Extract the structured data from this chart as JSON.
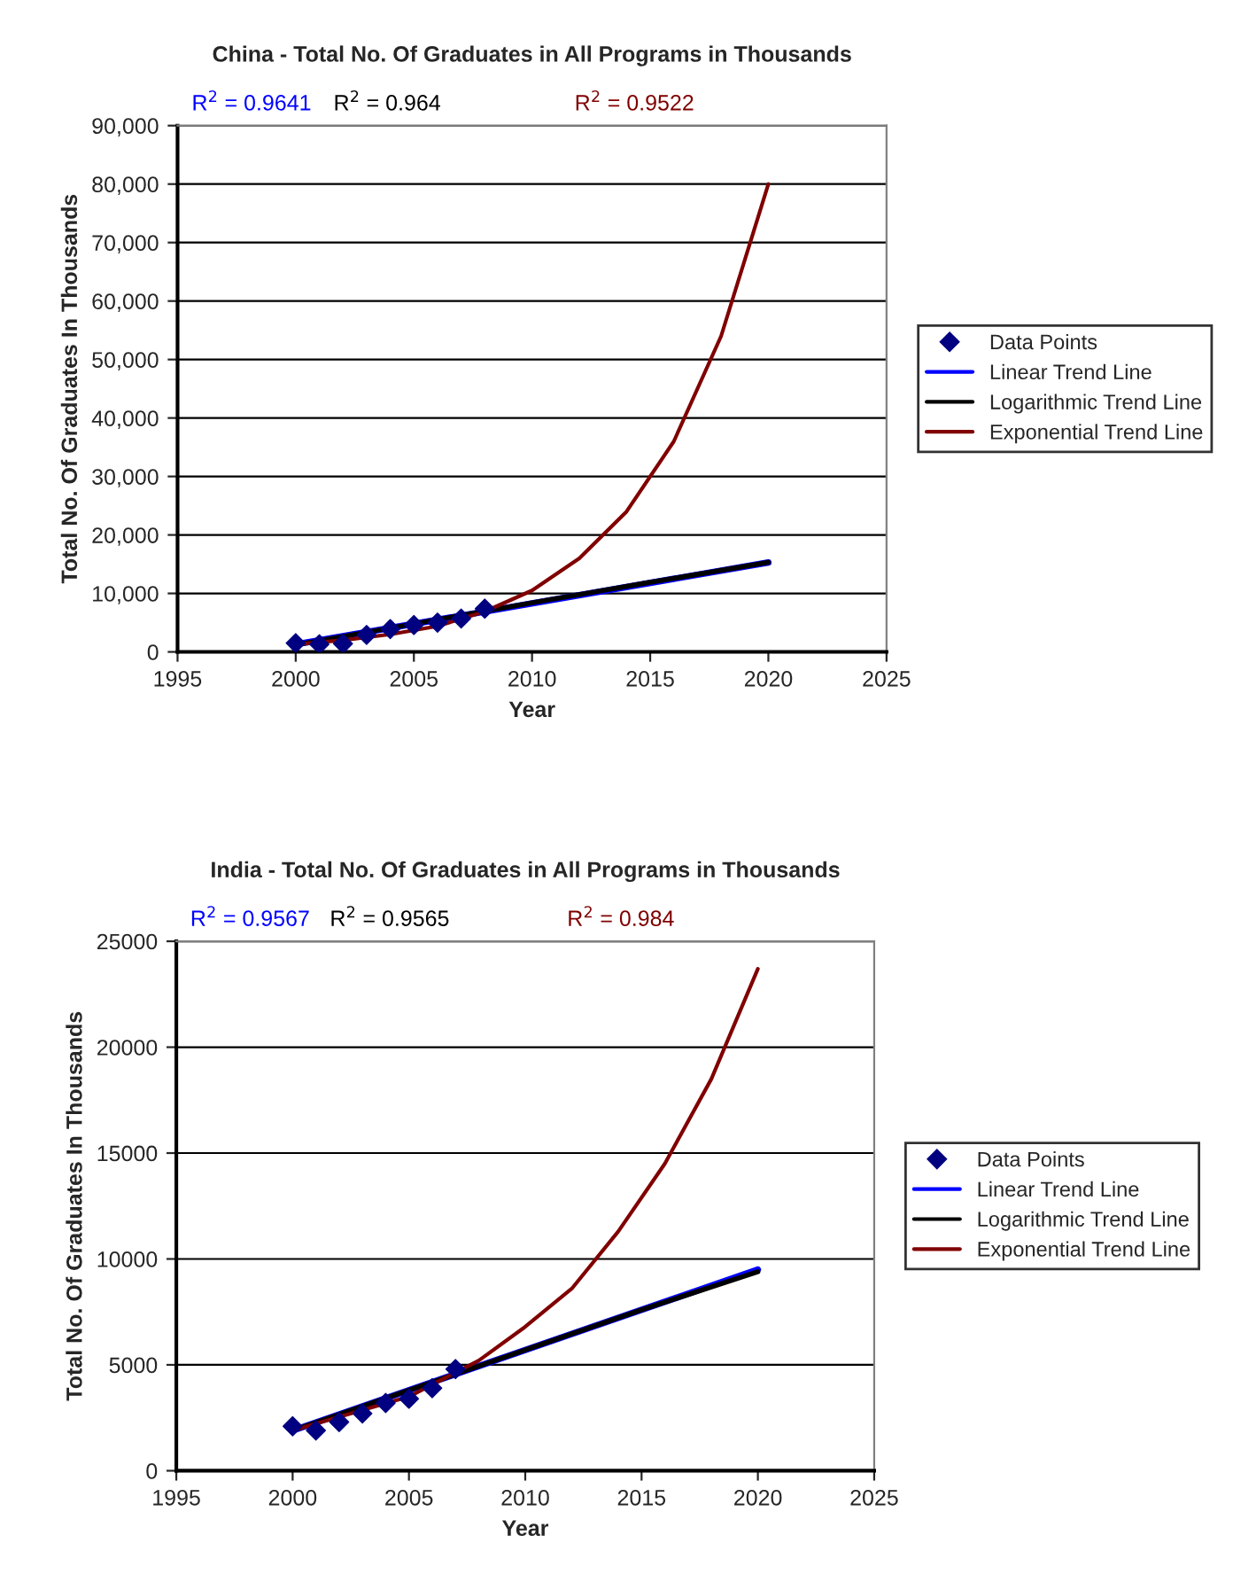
{
  "chart_data": [
    {
      "type": "scatter",
      "title": "China - Total No. Of Graduates in All Programs in Thousands",
      "xlabel": "Year",
      "ylabel": "Total No. Of Graduates In Thousands",
      "annotations": [
        "R$^{2}$ = 0.9641",
        "R$^{2}$ = 0.964",
        "R$^{2}$ = 0.9522"
      ],
      "series": [
        {
          "name": "Data Points",
          "marker": "diamond",
          "color": "#000080",
          "x": [
            2000,
            2001,
            2002,
            2003,
            2004,
            2005,
            2006,
            2007,
            2008
          ],
          "values": [
            1500,
            1300,
            1400,
            2900,
            3900,
            4600,
            5000,
            5700,
            7400
          ]
        },
        {
          "name": "Linear Trend Line",
          "type": "line",
          "color": "#0000ff",
          "x": [
            2000,
            2020
          ],
          "values": [
            1300,
            15300
          ]
        },
        {
          "name": "Logarithmic Trend Line",
          "type": "line",
          "color": "#000000",
          "x": [
            2000,
            2005,
            2010,
            2015,
            2020
          ],
          "values": [
            1200,
            4800,
            8400,
            11900,
            15300
          ]
        },
        {
          "name": "Exponential Trend Line",
          "type": "line",
          "color": "#800000",
          "x": [
            2000,
            2002,
            2004,
            2006,
            2008,
            2010,
            2012,
            2014,
            2016,
            2018,
            2020
          ],
          "values": [
            1300,
            2000,
            3000,
            4400,
            6900,
            10500,
            16000,
            24000,
            36000,
            54000,
            80000
          ]
        }
      ],
      "xlim": [
        1995,
        2025
      ],
      "xticks": [
        1995,
        2000,
        2005,
        2010,
        2015,
        2020,
        2025
      ],
      "ylim": [
        0,
        90000
      ],
      "yticks": [
        {
          "value": 0,
          "label": "0"
        },
        {
          "value": 10000,
          "label": "10,000"
        },
        {
          "value": 20000,
          "label": "20,000"
        },
        {
          "value": 30000,
          "label": "30,000"
        },
        {
          "value": 40000,
          "label": "40,000"
        },
        {
          "value": 50000,
          "label": "50,000"
        },
        {
          "value": 60000,
          "label": "60,000"
        },
        {
          "value": 70000,
          "label": "70,000"
        },
        {
          "value": 80000,
          "label": "80,000"
        },
        {
          "value": 90000,
          "label": "90,000"
        }
      ],
      "grid": "y",
      "legend": "right"
    },
    {
      "type": "scatter",
      "title": "India - Total No. Of Graduates in All Programs in Thousands",
      "xlabel": "Year",
      "ylabel": "Total No. Of Graduates In Thousands",
      "annotations": [
        "R$^{2}$ = 0.9567",
        "R$^{2}$ = 0.9565",
        "R$^{2}$ = 0.984"
      ],
      "series": [
        {
          "name": "Data Points",
          "marker": "diamond",
          "color": "#000080",
          "x": [
            2000,
            2001,
            2002,
            2003,
            2004,
            2005,
            2006,
            2007
          ],
          "values": [
            2100,
            1900,
            2300,
            2700,
            3200,
            3400,
            3900,
            4800
          ]
        },
        {
          "name": "Linear Trend Line",
          "type": "line",
          "color": "#0000ff",
          "x": [
            2000,
            2020
          ],
          "values": [
            1900,
            9500
          ]
        },
        {
          "name": "Logarithmic Trend Line",
          "type": "line",
          "color": "#000000",
          "x": [
            2000,
            2005,
            2010,
            2015,
            2020
          ],
          "values": [
            1900,
            3800,
            5700,
            7600,
            9400
          ]
        },
        {
          "name": "Exponential Trend Line",
          "type": "line",
          "color": "#800000",
          "x": [
            2000,
            2005,
            2008,
            2010,
            2012,
            2014,
            2016,
            2018,
            2020
          ],
          "values": [
            1900,
            3500,
            5200,
            6800,
            8600,
            11300,
            14500,
            18500,
            23700
          ]
        }
      ],
      "xlim": [
        1995,
        2025
      ],
      "xticks": [
        1995,
        2000,
        2005,
        2010,
        2015,
        2020,
        2025
      ],
      "ylim": [
        0,
        25000
      ],
      "yticks": [
        0,
        5000,
        10000,
        15000,
        20000,
        25000
      ],
      "grid": "y",
      "legend": "right"
    }
  ]
}
